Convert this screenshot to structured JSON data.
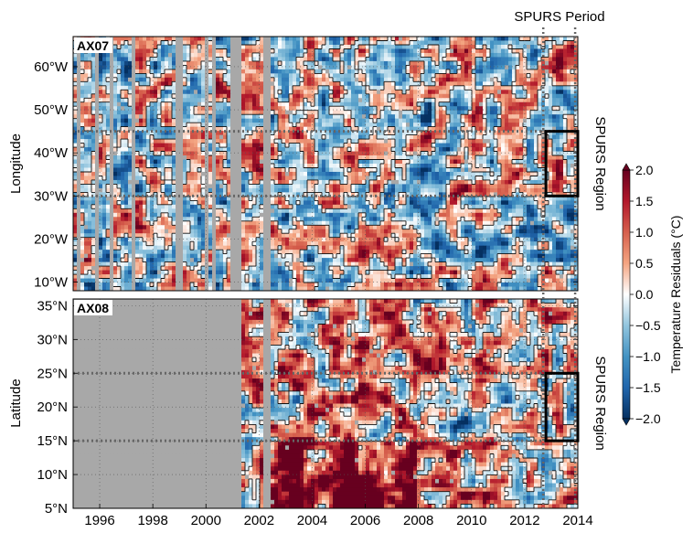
{
  "chart_data": [
    {
      "type": "heatmap",
      "panel_label": "AX07",
      "ylabel": "Longitude",
      "y_ticks": [
        "10°W",
        "20°W",
        "30°W",
        "40°W",
        "50°W",
        "60°W"
      ],
      "y_tick_values": [
        10,
        20,
        30,
        40,
        50,
        60
      ],
      "ylim": [
        67,
        8
      ],
      "xlim": [
        1995,
        2014
      ],
      "grid": true,
      "gap_years": [
        1995.2,
        1995.9,
        1996.4,
        1997.3,
        1999.0,
        2000.0,
        2000.3,
        2001.0,
        2001.2,
        2002.3
      ],
      "region": {
        "label": "SPURS Region",
        "x": [
          2012.8,
          2014.0
        ],
        "y": [
          30,
          45
        ]
      },
      "region_lines": [
        30,
        45
      ],
      "pattern": "ax07"
    },
    {
      "type": "heatmap",
      "panel_label": "AX08",
      "ylabel": "Latitude",
      "y_ticks": [
        "35°N",
        "30°N",
        "25°N",
        "20°N",
        "15°N",
        "10°N",
        "5°N"
      ],
      "y_tick_values": [
        35,
        30,
        25,
        20,
        15,
        10,
        5
      ],
      "ylim": [
        36,
        5
      ],
      "xlim": [
        1995,
        2014
      ],
      "x_ticks": [
        "1996",
        "1998",
        "2000",
        "2002",
        "2004",
        "2006",
        "2008",
        "2010",
        "2012",
        "2014"
      ],
      "x_tick_values": [
        1996,
        1998,
        2000,
        2002,
        2004,
        2006,
        2008,
        2010,
        2012,
        2014
      ],
      "grid": true,
      "no_data_before": 2001.0,
      "gap_years": [
        2001.2,
        2002.3
      ],
      "region": {
        "label": "SPURS Region",
        "x": [
          2012.8,
          2014.0
        ],
        "y": [
          15,
          25
        ]
      },
      "region_lines": [
        15,
        25
      ],
      "pattern": "ax08"
    }
  ],
  "spurs_period": {
    "label": "SPURS Period",
    "x": [
      2012.7,
      2013.9
    ]
  },
  "colorbar": {
    "label": "Temperature Residuals (°C)",
    "range": [
      -2.0,
      2.0
    ],
    "ticks": [
      "2.0",
      "1.5",
      "1.0",
      "0.5",
      "0.0",
      "−0.5",
      "−1.0",
      "−1.5",
      "−2.0"
    ],
    "tick_values": [
      2.0,
      1.5,
      1.0,
      0.5,
      0.0,
      -0.5,
      -1.0,
      -1.5,
      -2.0
    ],
    "colors": [
      "#053061",
      "#2166ac",
      "#4393c3",
      "#92c5de",
      "#ffffff",
      "#f4a582",
      "#d6604d",
      "#b2182b",
      "#67001f"
    ],
    "no_data_color": "#a8a8a8"
  }
}
